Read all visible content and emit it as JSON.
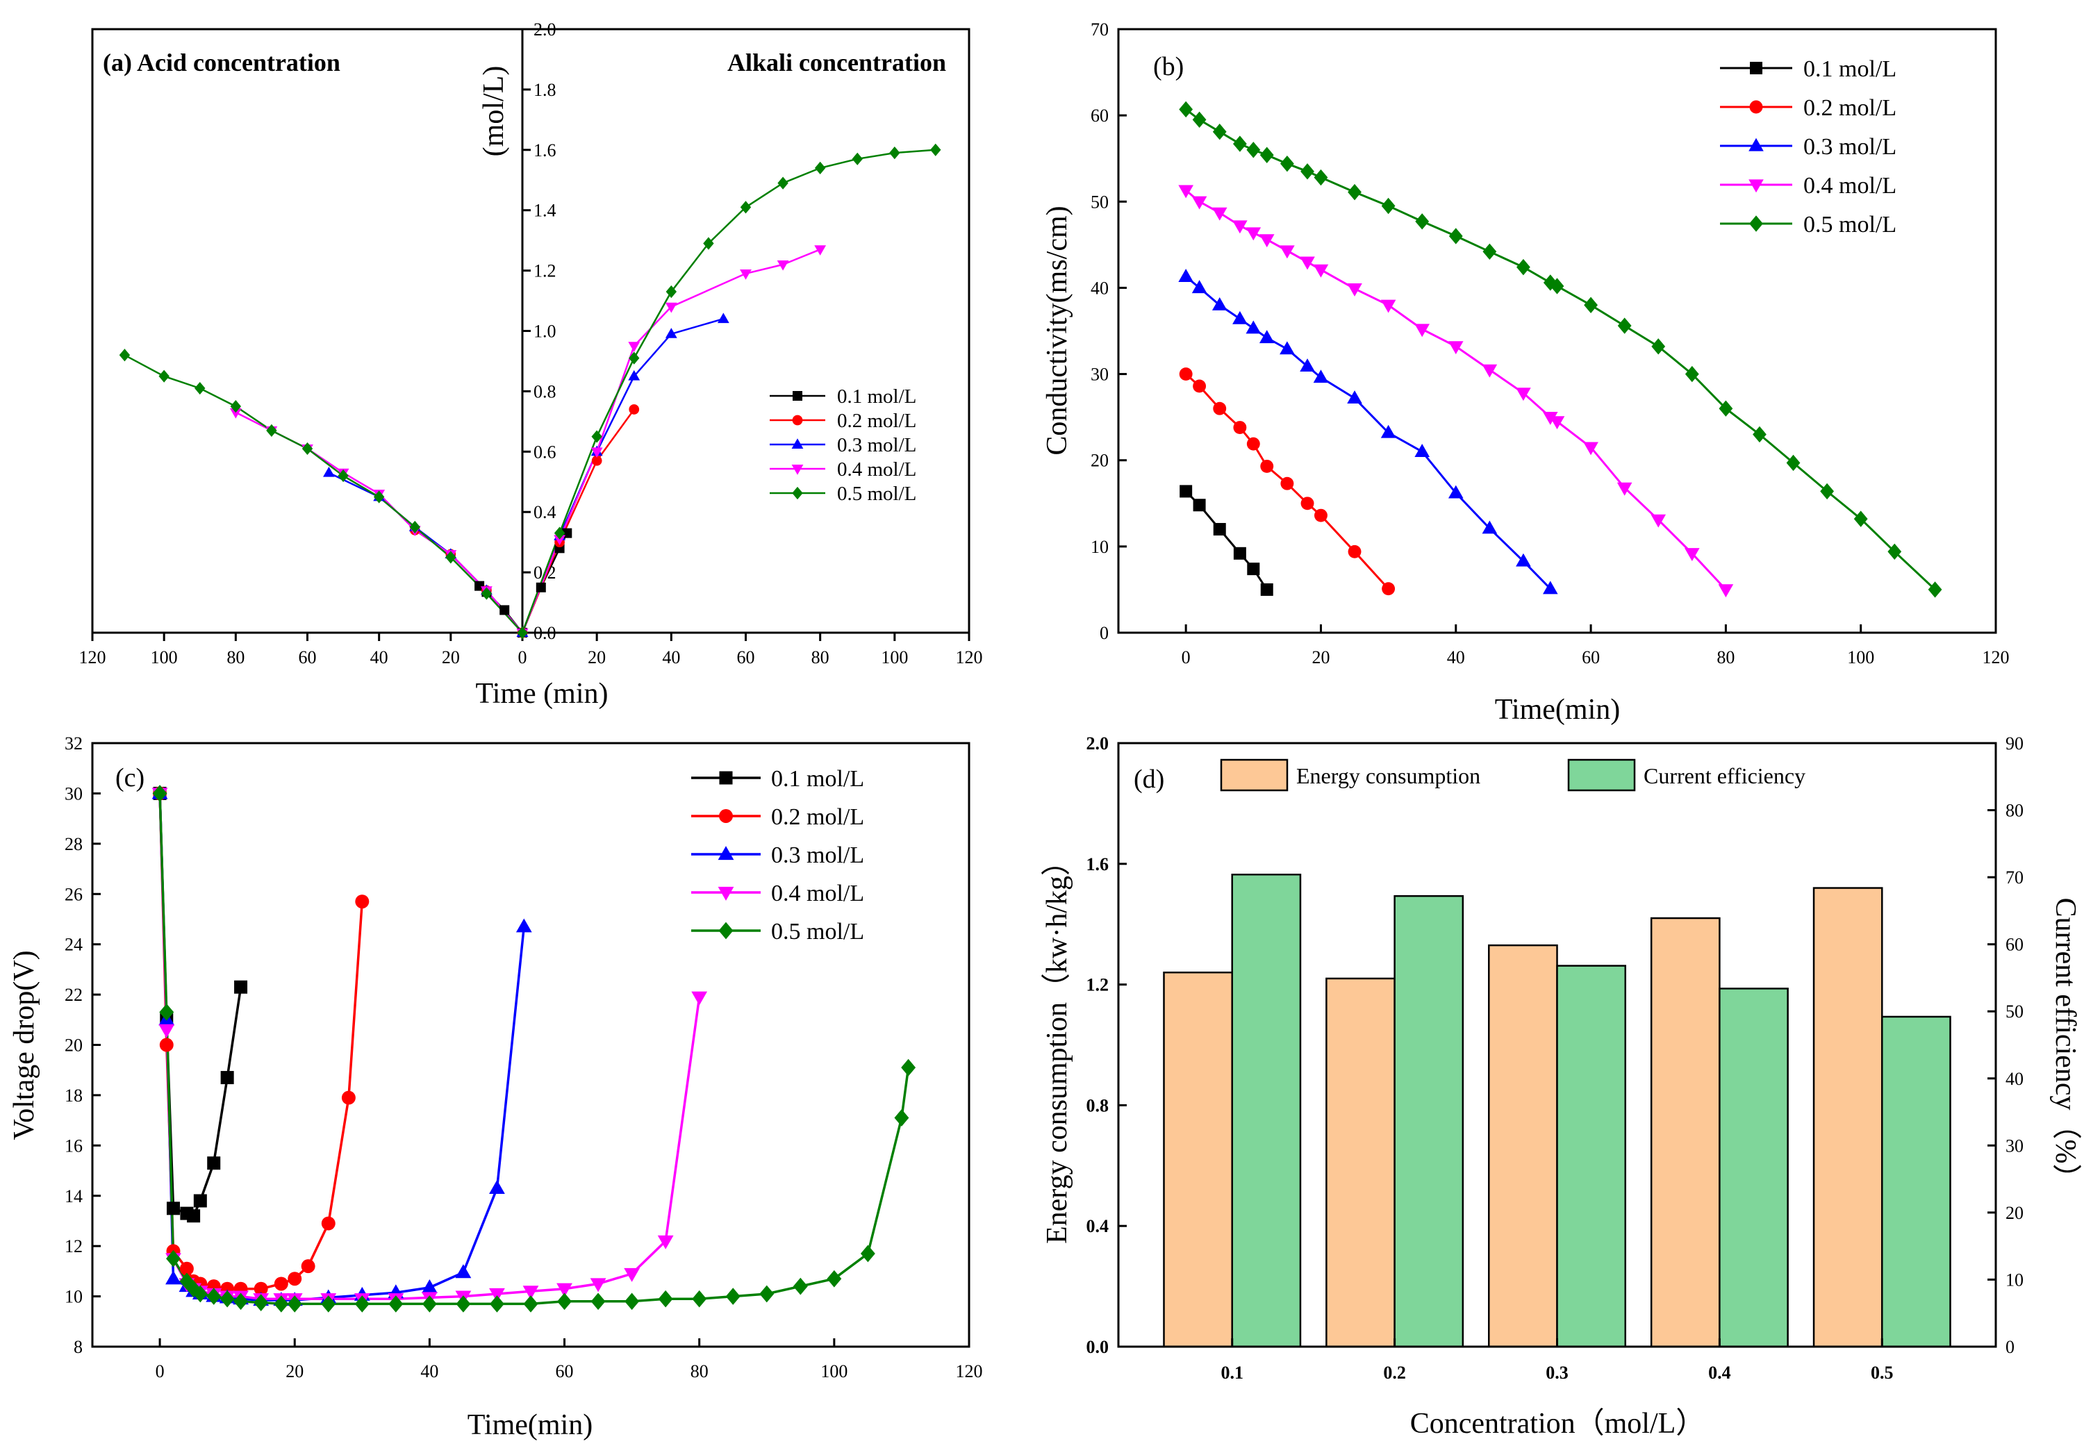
{
  "series_colors": [
    "#000000",
    "#ff0000",
    "#0000ff",
    "#ff00ff",
    "#008000"
  ],
  "chart_data": [
    {
      "panel": "a",
      "type": "line",
      "title_left": "(a) Acid concentration",
      "title_right": "Alkali concentration",
      "xlabel": "Time (min)",
      "ylabel": "(mol/L)",
      "xlim_left": [
        120,
        0
      ],
      "xlim_right": [
        0,
        120
      ],
      "ylim": [
        0,
        2.0
      ],
      "xticks_left": [
        120,
        100,
        80,
        60,
        40,
        20,
        0
      ],
      "xticks_right": [
        20,
        40,
        60,
        80,
        100,
        120
      ],
      "yticks": [
        "0.0",
        "0.2",
        "0.4",
        "0.6",
        "0.8",
        "1.0",
        "1.2",
        "1.4",
        "1.6",
        "1.8",
        "2.0"
      ],
      "legend": [
        "0.1 mol/L",
        "0.2 mol/L",
        "0.3 mol/L",
        "0.4 mol/L",
        "0.5 mol/L"
      ],
      "acid_series": [
        {
          "name": "0.1 mol/L",
          "t": [
            12,
            10,
            5,
            0
          ],
          "c": [
            0.155,
            0.135,
            0.075,
            0
          ]
        },
        {
          "name": "0.2 mol/L",
          "t": [
            30,
            20,
            10,
            0
          ],
          "c": [
            0.34,
            0.26,
            0.14,
            0
          ]
        },
        {
          "name": "0.3 mol/L",
          "t": [
            54,
            40,
            30,
            20,
            10,
            0
          ],
          "c": [
            0.53,
            0.45,
            0.35,
            0.26,
            0.14,
            0
          ]
        },
        {
          "name": "0.4 mol/L",
          "t": [
            80,
            70,
            60,
            50,
            40,
            30,
            20,
            10,
            0
          ],
          "c": [
            0.73,
            0.67,
            0.61,
            0.53,
            0.46,
            0.34,
            0.26,
            0.14,
            0
          ]
        },
        {
          "name": "0.5 mol/L",
          "t": [
            111,
            100,
            90,
            80,
            70,
            60,
            50,
            40,
            30,
            20,
            10,
            0
          ],
          "c": [
            0.92,
            0.85,
            0.81,
            0.75,
            0.67,
            0.61,
            0.52,
            0.45,
            0.35,
            0.25,
            0.13,
            0
          ]
        }
      ],
      "alkali_series": [
        {
          "name": "0.1 mol/L",
          "t": [
            0,
            5,
            10,
            12
          ],
          "c": [
            0,
            0.15,
            0.28,
            0.33
          ]
        },
        {
          "name": "0.2 mol/L",
          "t": [
            0,
            10,
            20,
            30
          ],
          "c": [
            0,
            0.3,
            0.57,
            0.74
          ]
        },
        {
          "name": "0.3 mol/L",
          "t": [
            0,
            10,
            20,
            30,
            40,
            54
          ],
          "c": [
            0,
            0.32,
            0.6,
            0.85,
            0.99,
            1.04
          ]
        },
        {
          "name": "0.4 mol/L",
          "t": [
            0,
            10,
            20,
            30,
            40,
            60,
            70,
            80
          ],
          "c": [
            0,
            0.31,
            0.6,
            0.95,
            1.08,
            1.19,
            1.22,
            1.27
          ]
        },
        {
          "name": "0.5 mol/L",
          "t": [
            0,
            10,
            20,
            30,
            40,
            50,
            60,
            70,
            80,
            90,
            100,
            111
          ],
          "c": [
            0,
            0.33,
            0.65,
            0.91,
            1.13,
            1.29,
            1.41,
            1.49,
            1.54,
            1.57,
            1.59,
            1.6
          ]
        }
      ]
    },
    {
      "panel": "b",
      "type": "line",
      "label": "(b)",
      "xlabel": "Time(min)",
      "ylabel": "Conductivity(ms/cm)",
      "xlim": [
        -10,
        120
      ],
      "ylim": [
        0,
        70
      ],
      "xticks": [
        0,
        20,
        40,
        60,
        80,
        100,
        120
      ],
      "yticks": [
        0,
        10,
        20,
        30,
        40,
        50,
        60,
        70
      ],
      "legend": [
        "0.1 mol/L",
        "0.2 mol/L",
        "0.3 mol/L",
        "0.4 mol/L",
        "0.5 mol/L"
      ],
      "series": [
        {
          "name": "0.1 mol/L",
          "x": [
            0,
            2,
            5,
            8,
            10,
            12
          ],
          "y": [
            16.4,
            14.8,
            12,
            9.2,
            7.4,
            5
          ]
        },
        {
          "name": "0.2 mol/L",
          "x": [
            0,
            2,
            5,
            8,
            10,
            12,
            15,
            18,
            20,
            25,
            30
          ],
          "y": [
            30,
            28.6,
            26,
            23.8,
            21.9,
            19.3,
            17.3,
            15,
            13.6,
            9.4,
            5.1
          ]
        },
        {
          "name": "0.3 mol/L",
          "x": [
            0,
            2,
            5,
            8,
            10,
            12,
            15,
            18,
            20,
            25,
            30,
            35,
            40,
            45,
            50,
            54
          ],
          "y": [
            41.3,
            40,
            38,
            36.4,
            35.3,
            34.2,
            32.9,
            30.9,
            29.6,
            27.2,
            23.2,
            21,
            16.2,
            12.1,
            8.3,
            5.1
          ]
        },
        {
          "name": "0.4 mol/L",
          "x": [
            0,
            2,
            5,
            8,
            10,
            12,
            15,
            18,
            20,
            25,
            30,
            35,
            40,
            45,
            50,
            54,
            55,
            60,
            65,
            70,
            75,
            80
          ],
          "y": [
            51.3,
            50,
            48.7,
            47.2,
            46.4,
            45.6,
            44.3,
            43,
            42.1,
            39.9,
            38,
            35.2,
            33.2,
            30.5,
            27.8,
            25,
            24.5,
            21.5,
            16.8,
            13.1,
            9.2,
            5
          ]
        },
        {
          "name": "0.5 mol/L",
          "x": [
            0,
            2,
            5,
            8,
            10,
            12,
            15,
            18,
            20,
            25,
            30,
            35,
            40,
            45,
            50,
            54,
            55,
            60,
            65,
            70,
            75,
            80,
            85,
            90,
            95,
            100,
            105,
            111
          ],
          "y": [
            60.7,
            59.5,
            58.1,
            56.7,
            56,
            55.4,
            54.4,
            53.5,
            52.8,
            51.1,
            49.5,
            47.7,
            46,
            44.2,
            42.4,
            40.6,
            40.2,
            38,
            35.6,
            33.2,
            30,
            26,
            23,
            19.7,
            16.4,
            13.2,
            9.4,
            5
          ]
        }
      ]
    },
    {
      "panel": "c",
      "type": "line",
      "label": "(c)",
      "xlabel": "Time(min)",
      "ylabel": "Voltage drop(V)",
      "xlim": [
        -10,
        120
      ],
      "ylim": [
        8,
        32
      ],
      "xticks": [
        0,
        20,
        40,
        60,
        80,
        100,
        120
      ],
      "yticks": [
        8,
        10,
        12,
        14,
        16,
        18,
        20,
        22,
        24,
        26,
        28,
        30,
        32
      ],
      "legend": [
        "0.1 mol/L",
        "0.2 mol/L",
        "0.3 mol/L",
        "0.4 mol/L",
        "0.5 mol/L"
      ],
      "series": [
        {
          "name": "0.1 mol/L",
          "x": [
            0,
            1,
            2,
            4,
            5,
            6,
            8,
            10,
            12
          ],
          "y": [
            30,
            21,
            13.5,
            13.3,
            13.2,
            13.8,
            15.3,
            18.7,
            22.3
          ]
        },
        {
          "name": "0.2 mol/L",
          "x": [
            0,
            1,
            2,
            4,
            5,
            6,
            8,
            10,
            12,
            15,
            18,
            20,
            22,
            25,
            28,
            30
          ],
          "y": [
            30,
            20,
            11.8,
            11.1,
            10.6,
            10.5,
            10.4,
            10.3,
            10.3,
            10.3,
            10.5,
            10.7,
            11.2,
            12.9,
            17.9,
            25.7
          ]
        },
        {
          "name": "0.3 mol/L",
          "x": [
            0,
            1,
            2,
            4,
            5,
            6,
            8,
            10,
            12,
            15,
            18,
            20,
            25,
            30,
            35,
            40,
            45,
            50,
            54
          ],
          "y": [
            30,
            21,
            10.7,
            10.4,
            10.2,
            10.1,
            10,
            9.95,
            9.9,
            9.85,
            9.85,
            9.85,
            9.95,
            10.05,
            10.15,
            10.35,
            10.95,
            14.3,
            24.7
          ]
        },
        {
          "name": "0.4 mol/L",
          "x": [
            0,
            1,
            2,
            4,
            5,
            6,
            8,
            10,
            12,
            15,
            18,
            20,
            25,
            30,
            35,
            40,
            45,
            50,
            55,
            60,
            65,
            70,
            75,
            80
          ],
          "y": [
            30,
            20.6,
            11.5,
            10.5,
            10.3,
            10.2,
            10.1,
            10,
            10,
            9.9,
            9.9,
            9.9,
            9.9,
            9.9,
            9.9,
            9.95,
            10,
            10.1,
            10.2,
            10.3,
            10.5,
            10.9,
            12.2,
            21.9
          ]
        },
        {
          "name": "0.5 mol/L",
          "x": [
            0,
            1,
            2,
            4,
            5,
            6,
            8,
            10,
            12,
            15,
            18,
            20,
            25,
            30,
            35,
            40,
            45,
            50,
            55,
            60,
            65,
            70,
            75,
            80,
            85,
            90,
            95,
            100,
            105,
            110,
            111
          ],
          "y": [
            30,
            21.3,
            11.5,
            10.6,
            10.3,
            10.1,
            10,
            9.9,
            9.8,
            9.75,
            9.7,
            9.7,
            9.7,
            9.7,
            9.7,
            9.7,
            9.7,
            9.7,
            9.7,
            9.8,
            9.8,
            9.8,
            9.9,
            9.9,
            10,
            10.1,
            10.4,
            10.7,
            11.7,
            17.1,
            19.1
          ]
        }
      ]
    },
    {
      "panel": "d",
      "type": "bar",
      "label": "(d)",
      "xlabel": "Concentration（mol/L）",
      "ylabel_left": "Energy consumption（kw·h/kg）",
      "ylabel_right": "Current efficiency（%）",
      "categories": [
        "0.1",
        "0.2",
        "0.3",
        "0.4",
        "0.5"
      ],
      "ylim_left": [
        0,
        2.0
      ],
      "ylim_right": [
        0,
        90
      ],
      "yticks_left": [
        "0.0",
        "0.4",
        "0.8",
        "1.2",
        "1.6",
        "2.0"
      ],
      "yticks_right": [
        0,
        10,
        20,
        30,
        40,
        50,
        60,
        70,
        80,
        90
      ],
      "series": [
        {
          "name": "Energy consumption",
          "axis": "left",
          "color": "#fdc896",
          "values": [
            1.24,
            1.22,
            1.33,
            1.42,
            1.52
          ]
        },
        {
          "name": "Current efficiency",
          "axis": "right",
          "color": "#7fd69a",
          "values": [
            70.4,
            67.2,
            56.8,
            53.4,
            49.2
          ]
        }
      ]
    }
  ]
}
